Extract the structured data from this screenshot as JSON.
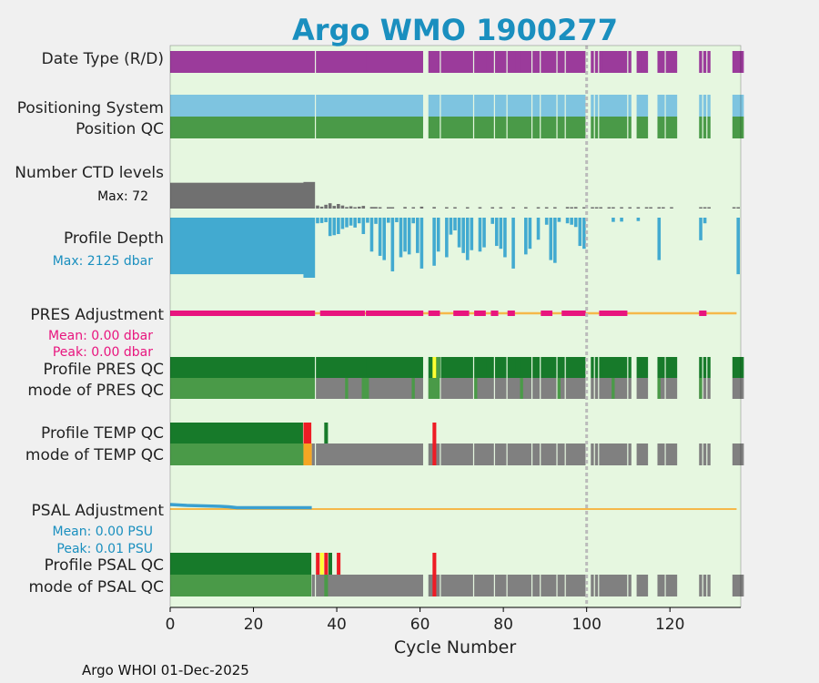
{
  "chart_data": {
    "type": "timeline",
    "title": "Argo WMO 1900277",
    "xlabel": "Cycle Number",
    "xlim": [
      0,
      137
    ],
    "xticks": [
      0,
      20,
      40,
      60,
      80,
      100,
      120
    ],
    "vline_cycle": 100,
    "footer": "Argo WHOI 01-Dec-2025",
    "colors": {
      "title": "#1a8fbf",
      "panel_bg": "#e6f7e0",
      "date_type": "#9b3b9b",
      "positioning": "#7ec4e0",
      "good": "#4a9a48",
      "dark_good": "#177a2a",
      "gray": "#808080",
      "ctd": "#707070",
      "depth": "#42aad0",
      "pres_adj": "#e8157e",
      "adj_line": "#f5b84a",
      "psal_adj": "#3aa0d0",
      "red": "#ee1c25",
      "yellow": "#ffff33",
      "orange": "#f5a623",
      "vline": "#bbbbbb"
    },
    "rows": {
      "date_type": "Date Type (R/D)",
      "positioning": "Positioning System",
      "position_qc": "Position QC",
      "ctd_levels": "Number CTD levels",
      "ctd_max": "Max: 72",
      "profile_depth": "Profile Depth",
      "depth_max": "Max: 2125 dbar",
      "pres_adjustment": "PRES Adjustment",
      "pres_mean": "Mean: 0.00 dbar",
      "pres_peak": "Peak: 0.00 dbar",
      "profile_pres_qc": "Profile PRES QC",
      "mode_pres_qc": "mode of PRES QC",
      "profile_temp_qc": "Profile TEMP QC",
      "mode_temp_qc": "mode of TEMP QC",
      "psal_adjustment": "PSAL Adjustment",
      "psal_mean": "Mean: 0.00 PSU",
      "psal_peak": "Peak: 0.01 PSU",
      "profile_psal_qc": "Profile PSAL QC",
      "mode_psal_qc": "mode of PSAL QC"
    },
    "present_ranges": [
      [
        0,
        34
      ],
      [
        35,
        47
      ],
      [
        47,
        60
      ],
      [
        62,
        64
      ],
      [
        65,
        72
      ],
      [
        73,
        76
      ],
      [
        76,
        77
      ],
      [
        78,
        80
      ],
      [
        81,
        83
      ],
      [
        83,
        84
      ],
      [
        84,
        86
      ],
      [
        87,
        88
      ],
      [
        89,
        92
      ],
      [
        93,
        94
      ],
      [
        95,
        99
      ],
      [
        101,
        101
      ],
      [
        102,
        102
      ],
      [
        103,
        104
      ],
      [
        104,
        109
      ],
      [
        110,
        110
      ],
      [
        112,
        113
      ],
      [
        113,
        114
      ],
      [
        117,
        118
      ],
      [
        118,
        118
      ],
      [
        119,
        121
      ],
      [
        127,
        127
      ],
      [
        128,
        128
      ],
      [
        129,
        129
      ],
      [
        135,
        136
      ],
      [
        136,
        137
      ]
    ],
    "ctd_levels": {
      "ranges": [
        [
          0,
          32,
          68
        ],
        [
          32,
          34,
          70
        ],
        [
          35,
          35,
          8
        ],
        [
          36,
          36,
          5
        ],
        [
          37,
          37,
          10
        ],
        [
          38,
          38,
          14
        ],
        [
          39,
          39,
          7
        ],
        [
          40,
          40,
          12
        ],
        [
          41,
          41,
          8
        ],
        [
          42,
          42,
          4
        ],
        [
          43,
          43,
          6
        ],
        [
          44,
          44,
          3
        ],
        [
          45,
          45,
          5
        ],
        [
          46,
          46,
          7
        ],
        [
          48,
          49,
          4
        ],
        [
          50,
          50,
          3
        ],
        [
          52,
          53,
          3
        ],
        [
          56,
          56,
          4
        ],
        [
          58,
          58,
          3
        ],
        [
          60,
          60,
          5
        ]
      ],
      "singles": [
        [
          63,
          4
        ],
        [
          66,
          2
        ],
        [
          68,
          2
        ],
        [
          71,
          3
        ],
        [
          74,
          2
        ],
        [
          77,
          2
        ],
        [
          79,
          2
        ],
        [
          82,
          2
        ],
        [
          85,
          2
        ],
        [
          88,
          1
        ],
        [
          90,
          2
        ],
        [
          92,
          2
        ],
        [
          95,
          4
        ],
        [
          96,
          3
        ],
        [
          97,
          4
        ],
        [
          99,
          2
        ],
        [
          101,
          2
        ],
        [
          102,
          2
        ],
        [
          103,
          1
        ],
        [
          105,
          2
        ],
        [
          106,
          2
        ],
        [
          108,
          2
        ],
        [
          110,
          2
        ],
        [
          112,
          2
        ],
        [
          114,
          2
        ],
        [
          115,
          2
        ],
        [
          117,
          2
        ],
        [
          118,
          1
        ],
        [
          120,
          2
        ],
        [
          127,
          2
        ],
        [
          128,
          2
        ],
        [
          129,
          3
        ],
        [
          135,
          2
        ],
        [
          136,
          2
        ]
      ]
    },
    "depth_bars": [
      [
        0,
        32,
        2000
      ],
      [
        32,
        34,
        2125
      ],
      [
        35,
        35,
        200
      ],
      [
        36,
        36,
        190
      ],
      [
        37,
        37,
        160
      ],
      [
        38,
        38,
        650
      ],
      [
        39,
        39,
        620
      ],
      [
        40,
        40,
        580
      ],
      [
        41,
        41,
        400
      ],
      [
        42,
        42,
        340
      ],
      [
        43,
        43,
        280
      ],
      [
        44,
        44,
        350
      ],
      [
        45,
        45,
        200
      ],
      [
        46,
        46,
        580
      ],
      [
        47,
        47,
        180
      ],
      [
        48,
        48,
        1200
      ],
      [
        49,
        49,
        220
      ],
      [
        50,
        50,
        1350
      ],
      [
        51,
        51,
        1500
      ],
      [
        52,
        52,
        180
      ],
      [
        53,
        53,
        1900
      ],
      [
        54,
        54,
        160
      ],
      [
        55,
        55,
        1400
      ],
      [
        56,
        56,
        1200
      ],
      [
        57,
        57,
        1300
      ],
      [
        58,
        58,
        200
      ],
      [
        59,
        59,
        1250
      ],
      [
        60,
        60,
        1800
      ],
      [
        63,
        63,
        1700
      ],
      [
        64,
        64,
        1200
      ],
      [
        66,
        66,
        1400
      ],
      [
        67,
        67,
        600
      ],
      [
        68,
        68,
        450
      ],
      [
        69,
        69,
        1050
      ],
      [
        70,
        70,
        1250
      ],
      [
        71,
        71,
        1500
      ],
      [
        72,
        72,
        1150
      ],
      [
        74,
        74,
        1200
      ],
      [
        75,
        75,
        1050
      ],
      [
        77,
        77,
        220
      ],
      [
        78,
        78,
        1000
      ],
      [
        79,
        79,
        1100
      ],
      [
        80,
        80,
        1400
      ],
      [
        82,
        82,
        1800
      ],
      [
        85,
        85,
        1300
      ],
      [
        86,
        86,
        1100
      ],
      [
        88,
        88,
        780
      ],
      [
        90,
        90,
        250
      ],
      [
        91,
        91,
        1500
      ],
      [
        92,
        92,
        1600
      ],
      [
        93,
        93,
        150
      ],
      [
        95,
        95,
        200
      ],
      [
        96,
        96,
        250
      ],
      [
        97,
        97,
        330
      ],
      [
        98,
        98,
        1000
      ],
      [
        99,
        99,
        1100
      ],
      [
        106,
        106,
        150
      ],
      [
        108,
        108,
        140
      ],
      [
        112,
        112,
        120
      ],
      [
        117,
        117,
        1500
      ],
      [
        127,
        127,
        800
      ],
      [
        128,
        128,
        200
      ],
      [
        136,
        136,
        2000
      ]
    ],
    "pres_adjustment": [
      [
        0,
        34
      ],
      [
        36,
        46
      ],
      [
        47,
        60
      ],
      [
        62,
        64
      ],
      [
        68,
        71
      ],
      [
        73,
        75
      ],
      [
        77,
        78
      ],
      [
        81,
        82
      ],
      [
        89,
        91
      ],
      [
        94,
        99
      ],
      [
        103,
        109
      ],
      [
        127,
        128
      ]
    ],
    "profile_pres_qc": {
      "base": "dark_good",
      "overrides": [
        [
          63,
          64,
          "yellow"
        ],
        [
          64,
          65,
          "good"
        ]
      ]
    },
    "mode_pres_qc": {
      "good": [
        [
          0,
          34
        ],
        [
          42,
          42
        ],
        [
          46,
          47
        ],
        [
          58,
          58
        ],
        [
          62,
          64
        ],
        [
          73,
          73
        ],
        [
          84,
          84
        ],
        [
          93,
          93
        ],
        [
          106,
          106
        ],
        [
          117,
          117
        ],
        [
          127,
          127
        ]
      ]
    },
    "profile_temp_qc": [
      [
        0,
        32,
        "dark_good"
      ],
      [
        32,
        34,
        "red"
      ],
      [
        37,
        38,
        "dark_good"
      ],
      [
        63,
        64,
        "red"
      ]
    ],
    "mode_temp_qc": {
      "good": [
        [
          0,
          32
        ]
      ],
      "orange": [
        [
          32,
          34
        ]
      ],
      "red": [
        [
          63,
          64
        ]
      ],
      "start_gray": 34
    },
    "psal_adjustment_curve": [
      [
        0,
        0.01
      ],
      [
        2,
        0.009
      ],
      [
        4,
        0.008
      ],
      [
        8,
        0.007
      ],
      [
        12,
        0.006
      ],
      [
        14,
        0.005
      ],
      [
        16,
        0.003
      ],
      [
        20,
        0.003
      ],
      [
        25,
        0.003
      ],
      [
        30,
        0.003
      ],
      [
        34,
        0.003
      ]
    ],
    "profile_psal_qc": [
      [
        0,
        34,
        "dark_good"
      ],
      [
        35,
        36,
        "red"
      ],
      [
        36,
        37,
        "yellow"
      ],
      [
        37,
        38,
        "red"
      ],
      [
        38,
        39,
        "dark_good"
      ],
      [
        40,
        41,
        "red"
      ],
      [
        63,
        64,
        "red"
      ]
    ],
    "mode_psal_qc": {
      "good": [
        [
          0,
          34
        ],
        [
          37,
          38
        ]
      ],
      "red": [
        [
          63,
          64
        ]
      ],
      "start_gray": 34
    }
  }
}
